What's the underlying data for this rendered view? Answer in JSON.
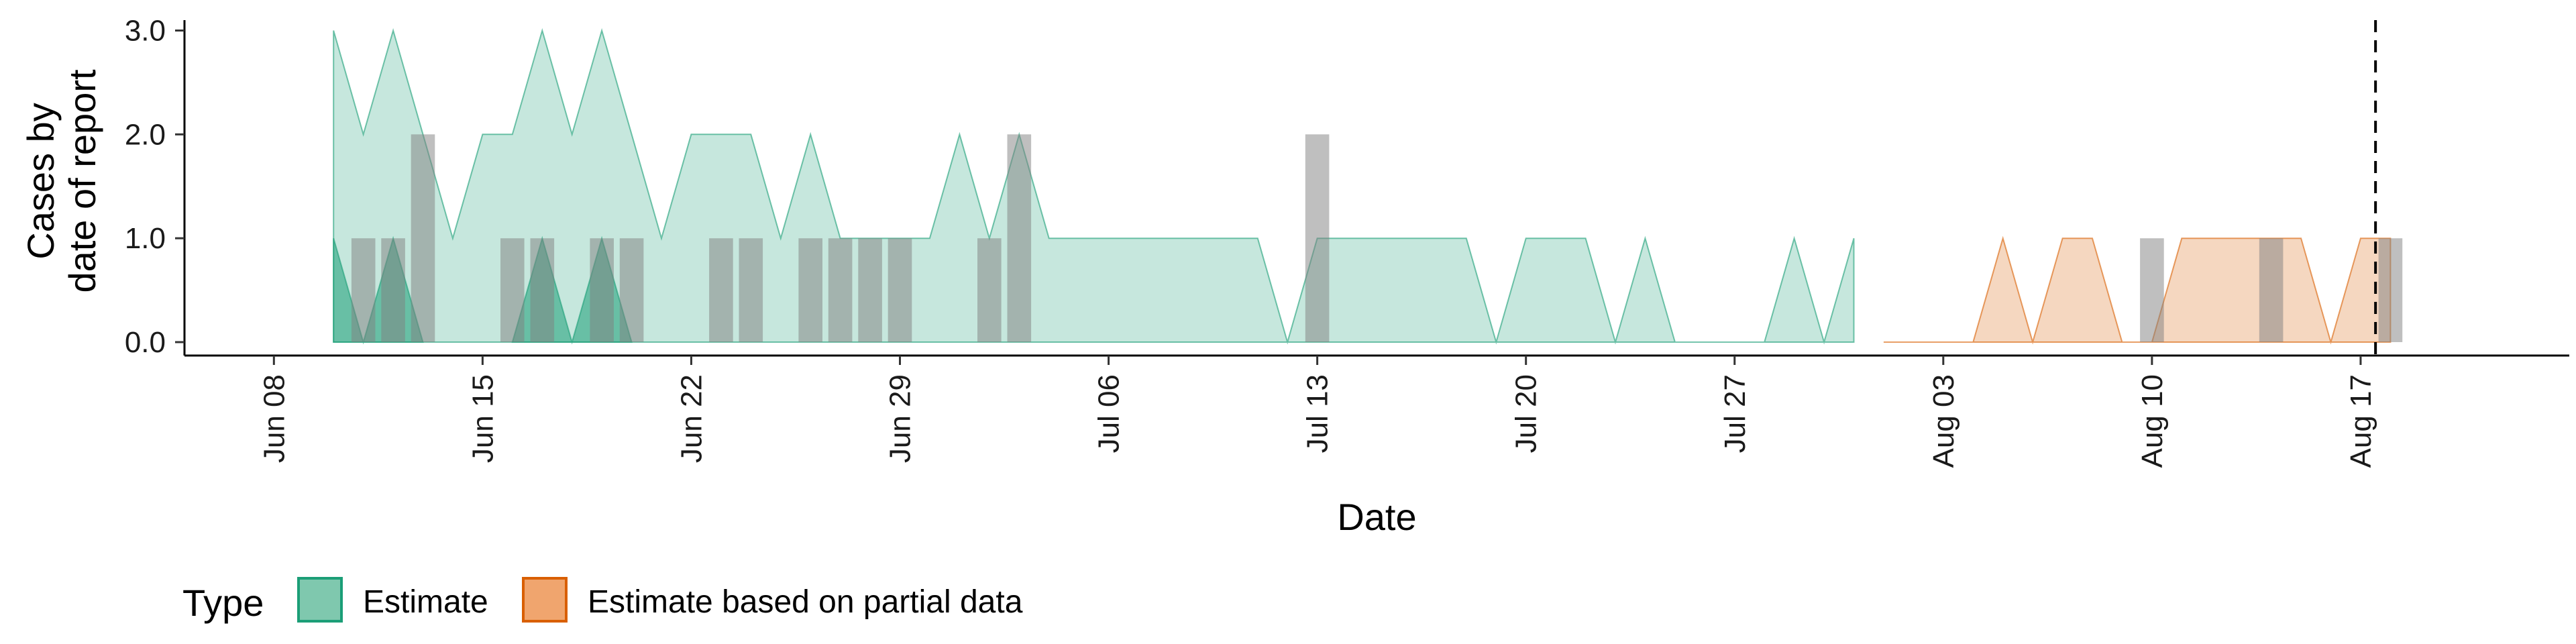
{
  "chart_data": {
    "type": "area",
    "xlabel": "Date",
    "ylabel_lines": [
      "Cases by",
      "date of report"
    ],
    "ylim": [
      0,
      3.1
    ],
    "xlim": [
      "2021-06-05",
      "2021-08-24"
    ],
    "y_ticks": [
      {
        "value": 0,
        "label": "0.0"
      },
      {
        "value": 1,
        "label": "1.0"
      },
      {
        "value": 2,
        "label": "2.0"
      },
      {
        "value": 3,
        "label": "3.0"
      }
    ],
    "x_ticks": [
      {
        "date": "2021-06-08",
        "label": "Jun 08"
      },
      {
        "date": "2021-06-15",
        "label": "Jun 15"
      },
      {
        "date": "2021-06-22",
        "label": "Jun 22"
      },
      {
        "date": "2021-06-29",
        "label": "Jun 29"
      },
      {
        "date": "2021-07-06",
        "label": "Jul 06"
      },
      {
        "date": "2021-07-13",
        "label": "Jul 13"
      },
      {
        "date": "2021-07-20",
        "label": "Jul 20"
      },
      {
        "date": "2021-07-27",
        "label": "Jul 27"
      },
      {
        "date": "2021-08-03",
        "label": "Aug 03"
      },
      {
        "date": "2021-08-10",
        "label": "Aug 10"
      },
      {
        "date": "2021-08-17",
        "label": "Aug 17"
      }
    ],
    "vline_date": "2021-08-17T12:00",
    "grid": false,
    "legend": {
      "title": "Type",
      "position": "bottom-left",
      "items": [
        {
          "label": "Estimate",
          "fill": "#7fc8ae",
          "stroke": "#1b9e77"
        },
        {
          "label": "Estimate based on partial data",
          "fill": "#f0a56e",
          "stroke": "#d95f02"
        }
      ]
    },
    "colors": {
      "estimate_fill": "#1b9e77",
      "estimate_dark_fill": "#1b9e77",
      "partial_fill": "#d95f02",
      "bars": "#808080",
      "axis": "#000000"
    },
    "series": [
      {
        "name": "Estimate",
        "kind": "band",
        "points": [
          [
            "2021-06-10",
            0,
            3
          ],
          [
            "2021-06-11",
            0,
            2
          ],
          [
            "2021-06-12",
            0,
            3
          ],
          [
            "2021-06-13",
            0,
            2
          ],
          [
            "2021-06-14",
            0,
            1
          ],
          [
            "2021-06-15",
            0,
            2
          ],
          [
            "2021-06-16",
            0,
            2
          ],
          [
            "2021-06-17",
            0,
            3
          ],
          [
            "2021-06-18",
            0,
            2
          ],
          [
            "2021-06-19",
            0,
            3
          ],
          [
            "2021-06-20",
            0,
            2
          ],
          [
            "2021-06-21",
            0,
            1
          ],
          [
            "2021-06-22",
            0,
            2
          ],
          [
            "2021-06-23",
            0,
            2
          ],
          [
            "2021-06-24",
            0,
            2
          ],
          [
            "2021-06-25",
            0,
            1
          ],
          [
            "2021-06-26",
            0,
            2
          ],
          [
            "2021-06-27",
            0,
            1
          ],
          [
            "2021-06-28",
            0,
            1
          ],
          [
            "2021-06-29",
            0,
            1
          ],
          [
            "2021-06-30",
            0,
            1
          ],
          [
            "2021-07-01",
            0,
            2
          ],
          [
            "2021-07-02",
            0,
            1
          ],
          [
            "2021-07-03",
            0,
            2
          ],
          [
            "2021-07-04",
            0,
            1
          ],
          [
            "2021-07-05",
            0,
            1
          ],
          [
            "2021-07-06",
            0,
            1
          ],
          [
            "2021-07-07",
            0,
            1
          ],
          [
            "2021-07-08",
            0,
            1
          ],
          [
            "2021-07-09",
            0,
            1
          ],
          [
            "2021-07-10",
            0,
            1
          ],
          [
            "2021-07-11",
            0,
            1
          ],
          [
            "2021-07-12",
            0,
            0
          ],
          [
            "2021-07-13",
            0,
            1
          ],
          [
            "2021-07-14",
            0,
            1
          ],
          [
            "2021-07-15",
            0,
            1
          ],
          [
            "2021-07-16",
            0,
            1
          ],
          [
            "2021-07-17",
            0,
            1
          ],
          [
            "2021-07-18",
            0,
            1
          ],
          [
            "2021-07-19",
            0,
            0
          ],
          [
            "2021-07-20",
            0,
            1
          ],
          [
            "2021-07-21",
            0,
            1
          ],
          [
            "2021-07-22",
            0,
            1
          ],
          [
            "2021-07-23",
            0,
            0
          ],
          [
            "2021-07-24",
            0,
            1
          ],
          [
            "2021-07-25",
            0,
            0
          ],
          [
            "2021-07-26",
            0,
            0
          ],
          [
            "2021-07-27",
            0,
            0
          ],
          [
            "2021-07-28",
            0,
            0
          ],
          [
            "2021-07-29",
            0,
            1
          ],
          [
            "2021-07-30",
            0,
            0
          ],
          [
            "2021-07-31",
            0,
            1
          ]
        ]
      },
      {
        "name": "Estimate",
        "kind": "band_dark",
        "points": [
          [
            "2021-06-10",
            0,
            1
          ],
          [
            "2021-06-11",
            0,
            0
          ],
          [
            "2021-06-12",
            0,
            1
          ],
          [
            "2021-06-13",
            0,
            0
          ],
          [
            "2021-06-16",
            0,
            0
          ],
          [
            "2021-06-17",
            0,
            1
          ],
          [
            "2021-06-18",
            0,
            0
          ],
          [
            "2021-06-19",
            0,
            1
          ],
          [
            "2021-06-20",
            0,
            0
          ]
        ]
      },
      {
        "name": "Estimate based on partial data",
        "kind": "band",
        "points": [
          [
            "2021-08-01",
            0,
            0
          ],
          [
            "2021-08-02",
            0,
            0
          ],
          [
            "2021-08-03",
            0,
            0
          ],
          [
            "2021-08-04",
            0,
            0
          ],
          [
            "2021-08-05",
            0,
            1
          ],
          [
            "2021-08-06",
            0,
            0
          ],
          [
            "2021-08-07",
            0,
            1
          ],
          [
            "2021-08-08",
            0,
            1
          ],
          [
            "2021-08-09",
            0,
            0
          ],
          [
            "2021-08-10",
            0,
            0
          ],
          [
            "2021-08-11",
            0,
            1
          ],
          [
            "2021-08-12",
            0,
            1
          ],
          [
            "2021-08-13",
            0,
            1
          ],
          [
            "2021-08-14",
            0,
            1
          ],
          [
            "2021-08-15",
            0,
            1
          ],
          [
            "2021-08-16",
            0,
            0
          ],
          [
            "2021-08-17",
            0,
            1
          ],
          [
            "2021-08-18",
            0,
            1
          ]
        ]
      }
    ],
    "bars": [
      {
        "date": "2021-06-11",
        "value": 1
      },
      {
        "date": "2021-06-12",
        "value": 1
      },
      {
        "date": "2021-06-13",
        "value": 2
      },
      {
        "date": "2021-06-16",
        "value": 1
      },
      {
        "date": "2021-06-17",
        "value": 1
      },
      {
        "date": "2021-06-19",
        "value": 1
      },
      {
        "date": "2021-06-20",
        "value": 1
      },
      {
        "date": "2021-06-23",
        "value": 1
      },
      {
        "date": "2021-06-24",
        "value": 1
      },
      {
        "date": "2021-06-26",
        "value": 1
      },
      {
        "date": "2021-06-27",
        "value": 1
      },
      {
        "date": "2021-06-28",
        "value": 1
      },
      {
        "date": "2021-06-29",
        "value": 1
      },
      {
        "date": "2021-07-02",
        "value": 1
      },
      {
        "date": "2021-07-03",
        "value": 2
      },
      {
        "date": "2021-07-13",
        "value": 2
      },
      {
        "date": "2021-08-10",
        "value": 1
      },
      {
        "date": "2021-08-14",
        "value": 1
      },
      {
        "date": "2021-08-18",
        "value": 1
      }
    ]
  }
}
